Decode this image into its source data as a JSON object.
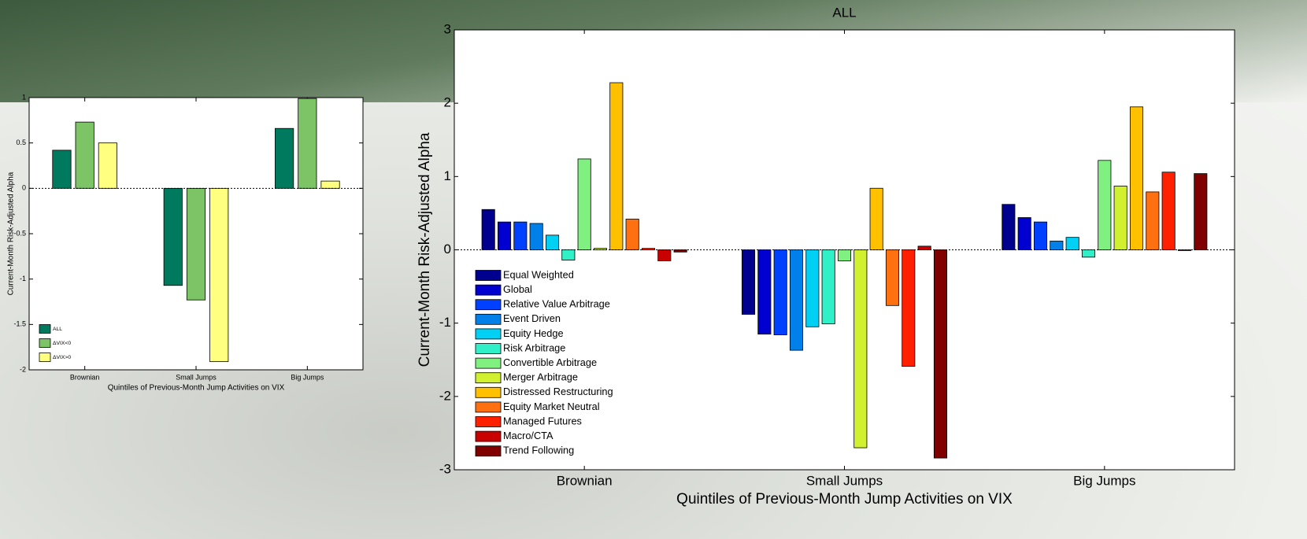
{
  "chart_data": [
    {
      "type": "bar",
      "y_label": "Current-Month Risk-Adjusted Alpha",
      "x_label": "Quintiles of Previous-Month Jump Activities on VIX",
      "categories": [
        "Brownian",
        "Small Jumps",
        "Big Jumps"
      ],
      "series": [
        {
          "name": "ALL",
          "color": "#007a5e",
          "values": [
            0.42,
            -1.07,
            0.66
          ]
        },
        {
          "name": "ΔVIX<0",
          "color": "#7cc466",
          "values": [
            0.73,
            -1.23,
            0.99
          ]
        },
        {
          "name": "ΔVIX>0",
          "color": "#ffff80",
          "values": [
            0.5,
            -1.91,
            0.08
          ]
        }
      ],
      "ylim": [
        -2,
        1
      ],
      "yticks": [
        -2,
        -1.5,
        -1,
        -0.5,
        0,
        0.5,
        1
      ],
      "legend": "lower left"
    },
    {
      "type": "bar",
      "title": "ALL",
      "y_label": "Current-Month Risk-Adjusted Alpha",
      "x_label": "Quintiles of Previous-Month Jump Activities on VIX",
      "categories": [
        "Brownian",
        "Small Jumps",
        "Big Jumps"
      ],
      "series": [
        {
          "name": "Equal Weighted",
          "color": "#00008f",
          "values": [
            0.55,
            -0.88,
            0.62
          ]
        },
        {
          "name": "Global",
          "color": "#0000d0",
          "values": [
            0.38,
            -1.15,
            0.44
          ]
        },
        {
          "name": "Relative Value Arbitrage",
          "color": "#0040ff",
          "values": [
            0.38,
            -1.16,
            0.38
          ]
        },
        {
          "name": "Event Driven",
          "color": "#0080e8",
          "values": [
            0.36,
            -1.37,
            0.12
          ]
        },
        {
          "name": "Equity Hedge",
          "color": "#00d0f4",
          "values": [
            0.2,
            -1.05,
            0.17
          ]
        },
        {
          "name": "Risk Arbitrage",
          "color": "#30f0c8",
          "values": [
            -0.14,
            -1.01,
            -0.1
          ]
        },
        {
          "name": "Convertible Arbitrage",
          "color": "#80f080",
          "values": [
            1.24,
            -0.15,
            1.22
          ]
        },
        {
          "name": "Merger Arbitrage",
          "color": "#d0f030",
          "values": [
            0.02,
            -2.7,
            0.87
          ]
        },
        {
          "name": "Distressed Restructuring",
          "color": "#ffc000",
          "values": [
            2.28,
            0.84,
            1.95
          ]
        },
        {
          "name": "Equity Market Neutral",
          "color": "#ff7010",
          "values": [
            0.42,
            -0.76,
            0.79
          ]
        },
        {
          "name": "Managed Futures",
          "color": "#ff2000",
          "values": [
            0.02,
            -1.59,
            1.06
          ]
        },
        {
          "name": "Macro/CTA",
          "color": "#c80000",
          "values": [
            -0.15,
            0.05,
            -0.01
          ]
        },
        {
          "name": "Trend Following",
          "color": "#800000",
          "values": [
            -0.03,
            -2.84,
            1.04
          ]
        }
      ],
      "ylim": [
        -3,
        3
      ],
      "yticks": [
        -3,
        -2,
        -1,
        0,
        1,
        2,
        3
      ],
      "legend": "lower left"
    }
  ]
}
